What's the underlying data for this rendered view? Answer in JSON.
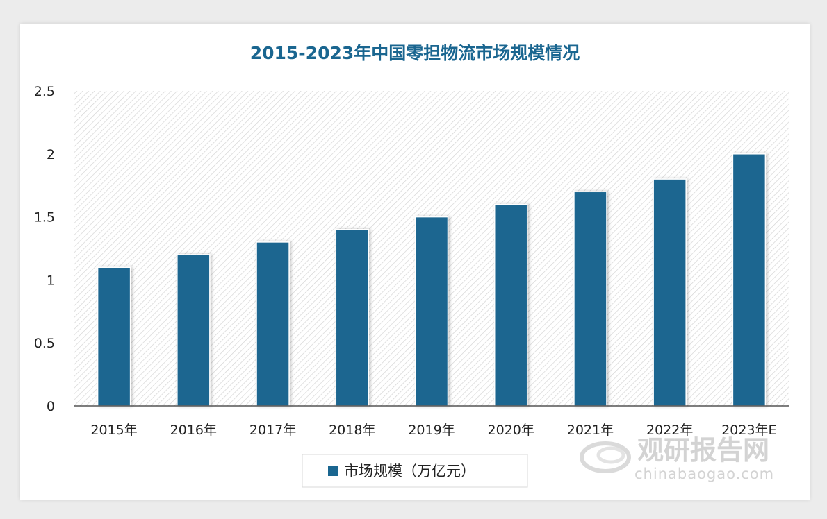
{
  "colors": {
    "bar": "#1a6690",
    "title": "#1a6690",
    "hatch": "#d4d4d4",
    "axis": "#333333"
  },
  "watermark": {
    "cn": "观研报告网",
    "en": "chinabaogao.com"
  },
  "chart_data": {
    "type": "bar",
    "title": "2015-2023年中国零担物流市场规模情况",
    "categories": [
      "2015年",
      "2016年",
      "2017年",
      "2018年",
      "2019年",
      "2020年",
      "2021年",
      "2022年",
      "2023年E"
    ],
    "series": [
      {
        "name": "市场规模（万亿元）",
        "values": [
          1.1,
          1.2,
          1.3,
          1.4,
          1.5,
          1.6,
          1.7,
          1.8,
          2.0
        ]
      }
    ],
    "yticks": [
      "0",
      "0.5",
      "1",
      "1.5",
      "2",
      "2.5"
    ],
    "ylim": [
      0,
      2.5
    ],
    "xlabel": "",
    "ylabel": "",
    "legend_position": "bottom-center"
  }
}
